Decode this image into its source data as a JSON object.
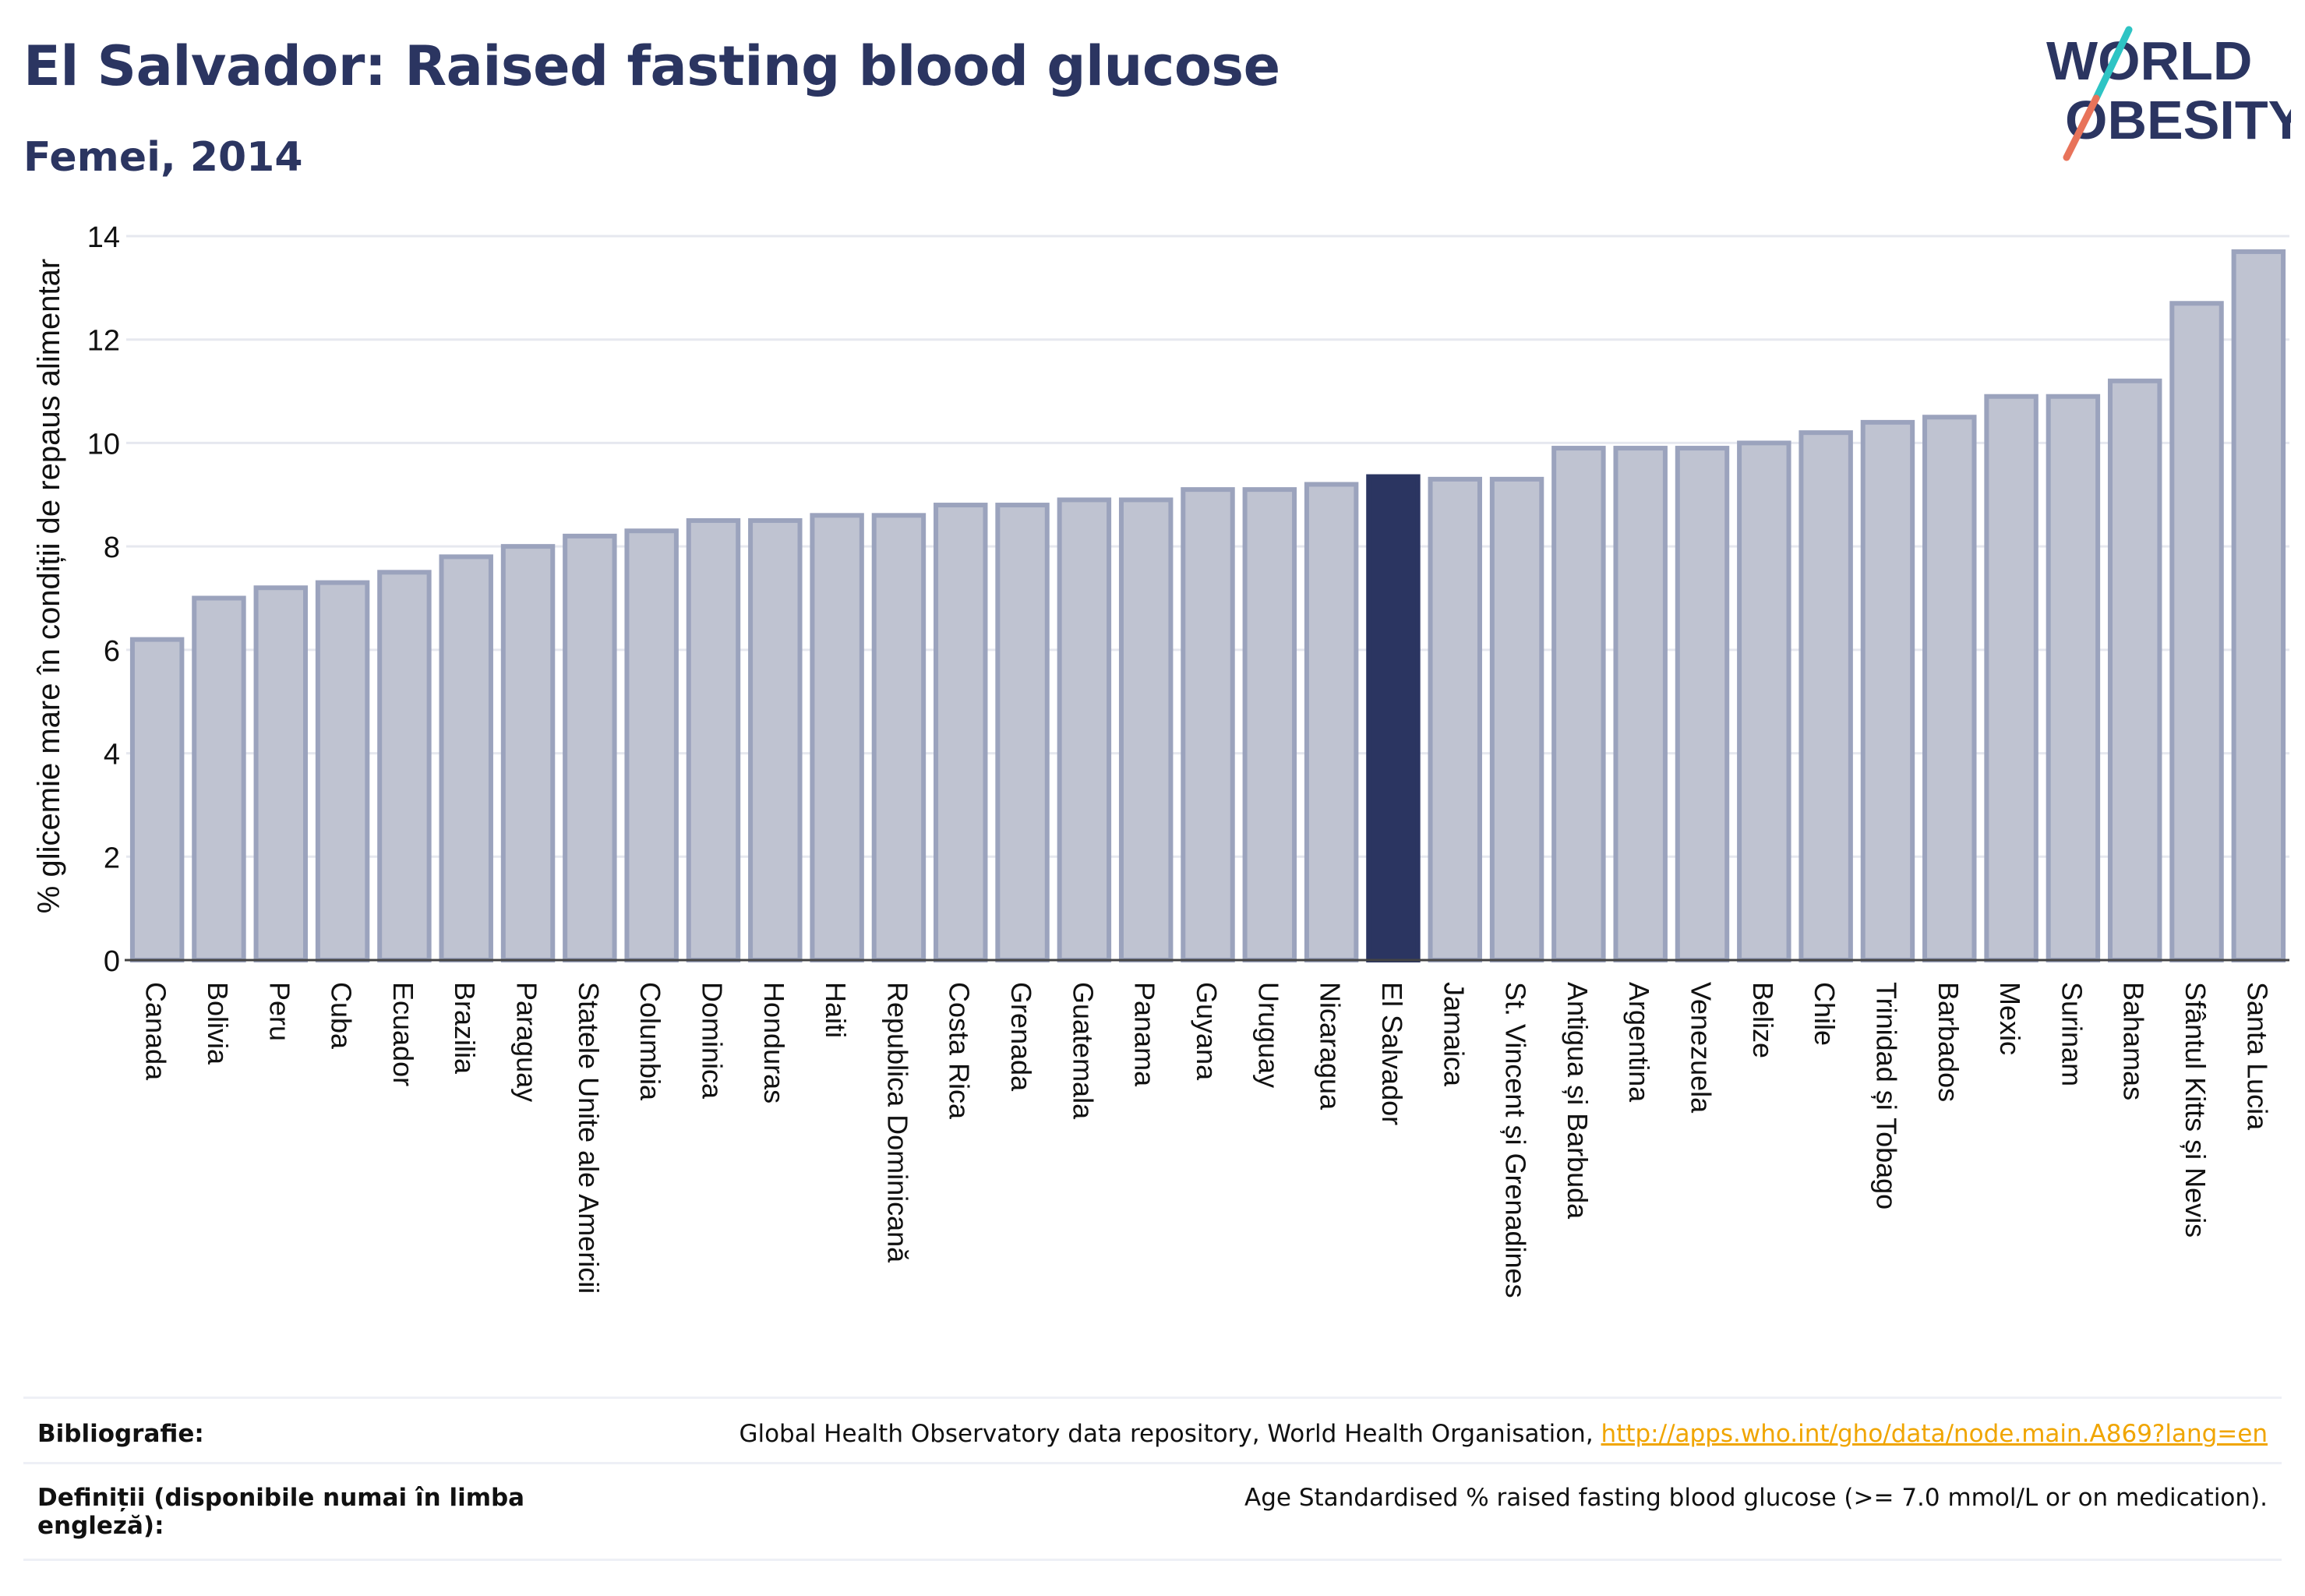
{
  "header": {
    "title": "El Salvador: Raised fasting blood glucose",
    "subtitle": "Femei, 2014"
  },
  "logo": {
    "line1": "WORLD",
    "line2": "OBESITY"
  },
  "colors": {
    "bar_default": "#bfc3d1",
    "bar_stroke": "#9ba3bd",
    "bar_highlight": "#2b3561",
    "grid": "#e6e8ef",
    "logo_text": "#2b3561",
    "logo_slash_top": "#2ec4c4",
    "logo_slash_bottom": "#e8735a",
    "link": "#f0a500"
  },
  "chart_data": {
    "type": "bar",
    "ylabel": "% glicemie mare în condiții de repaus alimentar",
    "ylim": [
      0,
      14
    ],
    "yticks": [
      0,
      2,
      4,
      6,
      8,
      10,
      12,
      14
    ],
    "grid": true,
    "highlight": "El Salvador",
    "categories": [
      "Canada",
      "Bolivia",
      "Peru",
      "Cuba",
      "Ecuador",
      "Brazilia",
      "Paraguay",
      "Statele Unite ale Americii",
      "Columbia",
      "Dominica",
      "Honduras",
      "Haiti",
      "Republica Dominicană",
      "Costa Rica",
      "Grenada",
      "Guatemala",
      "Panama",
      "Guyana",
      "Uruguay",
      "Nicaragua",
      "El Salvador",
      "Jamaica",
      "St. Vincent și Grenadines",
      "Antigua și Barbuda",
      "Argentina",
      "Venezuela",
      "Belize",
      "Chile",
      "Trinidad și Tobago",
      "Barbados",
      "Mexic",
      "Surinam",
      "Bahamas",
      "Sfântul Kitts și Nevis",
      "Santa Lucia"
    ],
    "values": [
      6.2,
      7.0,
      7.2,
      7.3,
      7.5,
      7.8,
      8.0,
      8.2,
      8.3,
      8.5,
      8.5,
      8.6,
      8.6,
      8.8,
      8.8,
      8.9,
      8.9,
      9.1,
      9.1,
      9.2,
      9.35,
      9.3,
      9.3,
      9.9,
      9.9,
      9.9,
      10.0,
      10.2,
      10.4,
      10.5,
      10.9,
      10.9,
      11.2,
      12.7,
      13.7
    ]
  },
  "footer": {
    "bibliography_label": "Bibliografie:",
    "bibliography_text": "Global Health Observatory data repository, World Health Organisation, ",
    "bibliography_link": "http://apps.who.int/gho/data/node.main.A869?lang=en",
    "definitions_label_line1": "Definiții (disponibile numai în limba",
    "definitions_label_line2": "engleză):",
    "definitions_text": "Age Standardised % raised fasting blood glucose (>= 7.0 mmol/L or on medication)."
  }
}
